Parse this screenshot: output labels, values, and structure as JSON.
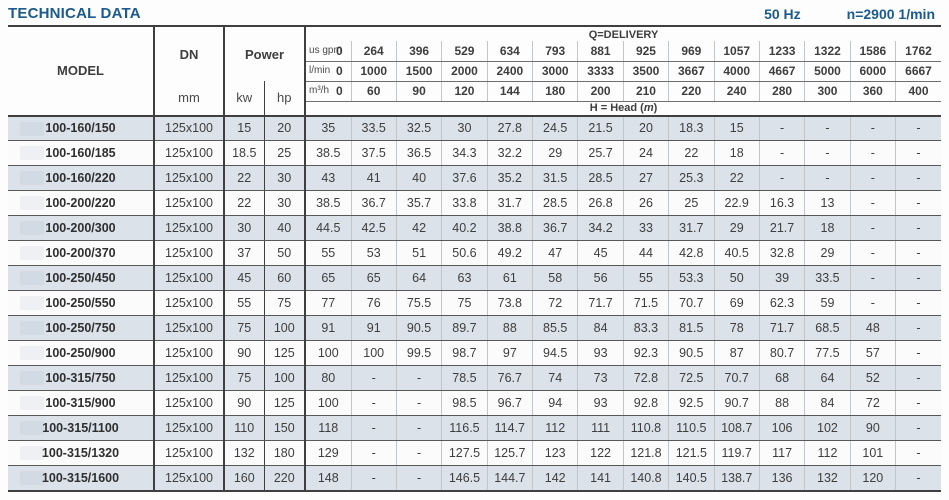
{
  "page": {
    "title": "TECHNICAL DATA",
    "frequency": "50 Hz",
    "speed": "n=2900 1/min"
  },
  "table": {
    "model_header": "MODEL",
    "dn_header": "DN",
    "dn_unit": "mm",
    "power_header": "Power",
    "power_units": {
      "kw": "kw",
      "hp": "hp"
    },
    "delivery_header": "Q=DELIVERY",
    "head_label": {
      "prefix": "H = Head (",
      "unit": "m",
      "suffix": ")"
    },
    "unit_rows": [
      {
        "label": "us gpm",
        "values": [
          "0",
          "264",
          "396",
          "529",
          "634",
          "793",
          "881",
          "925",
          "969",
          "1057",
          "1233",
          "1322",
          "1586",
          "1762"
        ]
      },
      {
        "label": "l/min",
        "values": [
          "0",
          "1000",
          "1500",
          "2000",
          "2400",
          "3000",
          "3333",
          "3500",
          "3667",
          "4000",
          "4667",
          "5000",
          "6000",
          "6667"
        ]
      },
      {
        "label": "m³/h",
        "values": [
          "0",
          "60",
          "90",
          "120",
          "144",
          "180",
          "200",
          "210",
          "220",
          "240",
          "280",
          "300",
          "360",
          "400"
        ]
      }
    ],
    "rows": [
      {
        "model": "100-160/150",
        "dn": "125x100",
        "kw": "15",
        "hp": "20",
        "heads": [
          "35",
          "33.5",
          "32.5",
          "30",
          "27.8",
          "24.5",
          "21.5",
          "20",
          "18.3",
          "15",
          "-",
          "-",
          "-",
          "-"
        ]
      },
      {
        "model": "100-160/185",
        "dn": "125x100",
        "kw": "18.5",
        "hp": "25",
        "heads": [
          "38.5",
          "37.5",
          "36.5",
          "34.3",
          "32.2",
          "29",
          "25.7",
          "24",
          "22",
          "18",
          "-",
          "-",
          "-",
          "-"
        ]
      },
      {
        "model": "100-160/220",
        "dn": "125x100",
        "kw": "22",
        "hp": "30",
        "heads": [
          "43",
          "41",
          "40",
          "37.6",
          "35.2",
          "31.5",
          "28.5",
          "27",
          "25.3",
          "22",
          "-",
          "-",
          "-",
          "-"
        ]
      },
      {
        "model": "100-200/220",
        "dn": "125x100",
        "kw": "22",
        "hp": "30",
        "heads": [
          "38.5",
          "36.7",
          "35.7",
          "33.8",
          "31.7",
          "28.5",
          "26.8",
          "26",
          "25",
          "22.9",
          "16.3",
          "13",
          "-",
          "-"
        ]
      },
      {
        "model": "100-200/300",
        "dn": "125x100",
        "kw": "30",
        "hp": "40",
        "heads": [
          "44.5",
          "42.5",
          "42",
          "40.2",
          "38.8",
          "36.7",
          "34.2",
          "33",
          "31.7",
          "29",
          "21.7",
          "18",
          "-",
          "-"
        ]
      },
      {
        "model": "100-200/370",
        "dn": "125x100",
        "kw": "37",
        "hp": "50",
        "heads": [
          "55",
          "53",
          "51",
          "50.6",
          "49.2",
          "47",
          "45",
          "44",
          "42.8",
          "40.5",
          "32.8",
          "29",
          "-",
          "-"
        ]
      },
      {
        "model": "100-250/450",
        "dn": "125x100",
        "kw": "45",
        "hp": "60",
        "heads": [
          "65",
          "65",
          "64",
          "63",
          "61",
          "58",
          "56",
          "55",
          "53.3",
          "50",
          "39",
          "33.5",
          "-",
          "-"
        ]
      },
      {
        "model": "100-250/550",
        "dn": "125x100",
        "kw": "55",
        "hp": "75",
        "heads": [
          "77",
          "76",
          "75.5",
          "75",
          "73.8",
          "72",
          "71.7",
          "71.5",
          "70.7",
          "69",
          "62.3",
          "59",
          "-",
          "-"
        ]
      },
      {
        "model": "100-250/750",
        "dn": "125x100",
        "kw": "75",
        "hp": "100",
        "heads": [
          "91",
          "91",
          "90.5",
          "89.7",
          "88",
          "85.5",
          "84",
          "83.3",
          "81.5",
          "78",
          "71.7",
          "68.5",
          "48",
          "-"
        ]
      },
      {
        "model": "100-250/900",
        "dn": "125x100",
        "kw": "90",
        "hp": "125",
        "heads": [
          "100",
          "100",
          "99.5",
          "98.7",
          "97",
          "94.5",
          "93",
          "92.3",
          "90.5",
          "87",
          "80.7",
          "77.5",
          "57",
          "-"
        ]
      },
      {
        "model": "100-315/750",
        "dn": "125x100",
        "kw": "75",
        "hp": "100",
        "heads": [
          "80",
          "-",
          "-",
          "78.5",
          "76.7",
          "74",
          "73",
          "72.8",
          "72.5",
          "70.7",
          "68",
          "64",
          "52",
          "-"
        ]
      },
      {
        "model": "100-315/900",
        "dn": "125x100",
        "kw": "90",
        "hp": "125",
        "heads": [
          "100",
          "-",
          "-",
          "98.5",
          "96.7",
          "94",
          "93",
          "92.8",
          "92.5",
          "90.7",
          "88",
          "84",
          "72",
          "-"
        ]
      },
      {
        "model": "100-315/1100",
        "dn": "125x100",
        "kw": "110",
        "hp": "150",
        "heads": [
          "118",
          "-",
          "-",
          "116.5",
          "114.7",
          "112",
          "111",
          "110.8",
          "110.5",
          "108.7",
          "106",
          "102",
          "90",
          "-"
        ]
      },
      {
        "model": "100-315/1320",
        "dn": "125x100",
        "kw": "132",
        "hp": "180",
        "heads": [
          "129",
          "-",
          "-",
          "127.5",
          "125.7",
          "123",
          "122",
          "121.8",
          "121.5",
          "119.7",
          "117",
          "112",
          "101",
          "-"
        ]
      },
      {
        "model": "100-315/1600",
        "dn": "125x100",
        "kw": "160",
        "hp": "220",
        "heads": [
          "148",
          "-",
          "-",
          "146.5",
          "144.7",
          "142",
          "141",
          "140.8",
          "140.5",
          "138.7",
          "136",
          "132",
          "120",
          "-"
        ]
      }
    ]
  }
}
